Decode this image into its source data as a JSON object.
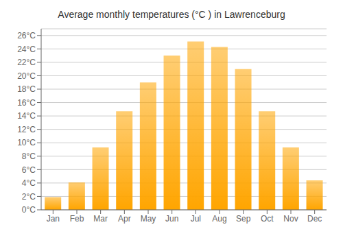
{
  "chart_data": {
    "type": "bar",
    "title": "Average monthly temperatures (°C ) in Lawrenceburg",
    "categories": [
      "Jan",
      "Feb",
      "Mar",
      "Apr",
      "May",
      "Jun",
      "Jul",
      "Aug",
      "Sep",
      "Oct",
      "Nov",
      "Dec"
    ],
    "values": [
      1.9,
      4.1,
      9.3,
      14.7,
      19.0,
      23.0,
      25.1,
      24.3,
      21.0,
      14.7,
      9.3,
      4.4
    ],
    "color": "#FFA500",
    "ylim": [
      0,
      27
    ],
    "yticks": [
      {
        "value": 0,
        "label": "0°C"
      },
      {
        "value": 2,
        "label": "2°C"
      },
      {
        "value": 4,
        "label": "4°C"
      },
      {
        "value": 6,
        "label": "6°C"
      },
      {
        "value": 8,
        "label": "8°C"
      },
      {
        "value": 10,
        "label": "10°C"
      },
      {
        "value": 12,
        "label": "12°C"
      },
      {
        "value": 14,
        "label": "14°C"
      },
      {
        "value": 16,
        "label": "16°C"
      },
      {
        "value": 18,
        "label": "18°C"
      },
      {
        "value": 20,
        "label": "20°C"
      },
      {
        "value": 22,
        "label": "22°C"
      },
      {
        "value": 24,
        "label": "24°C"
      },
      {
        "value": 26,
        "label": "26°C"
      }
    ],
    "grid": true
  }
}
